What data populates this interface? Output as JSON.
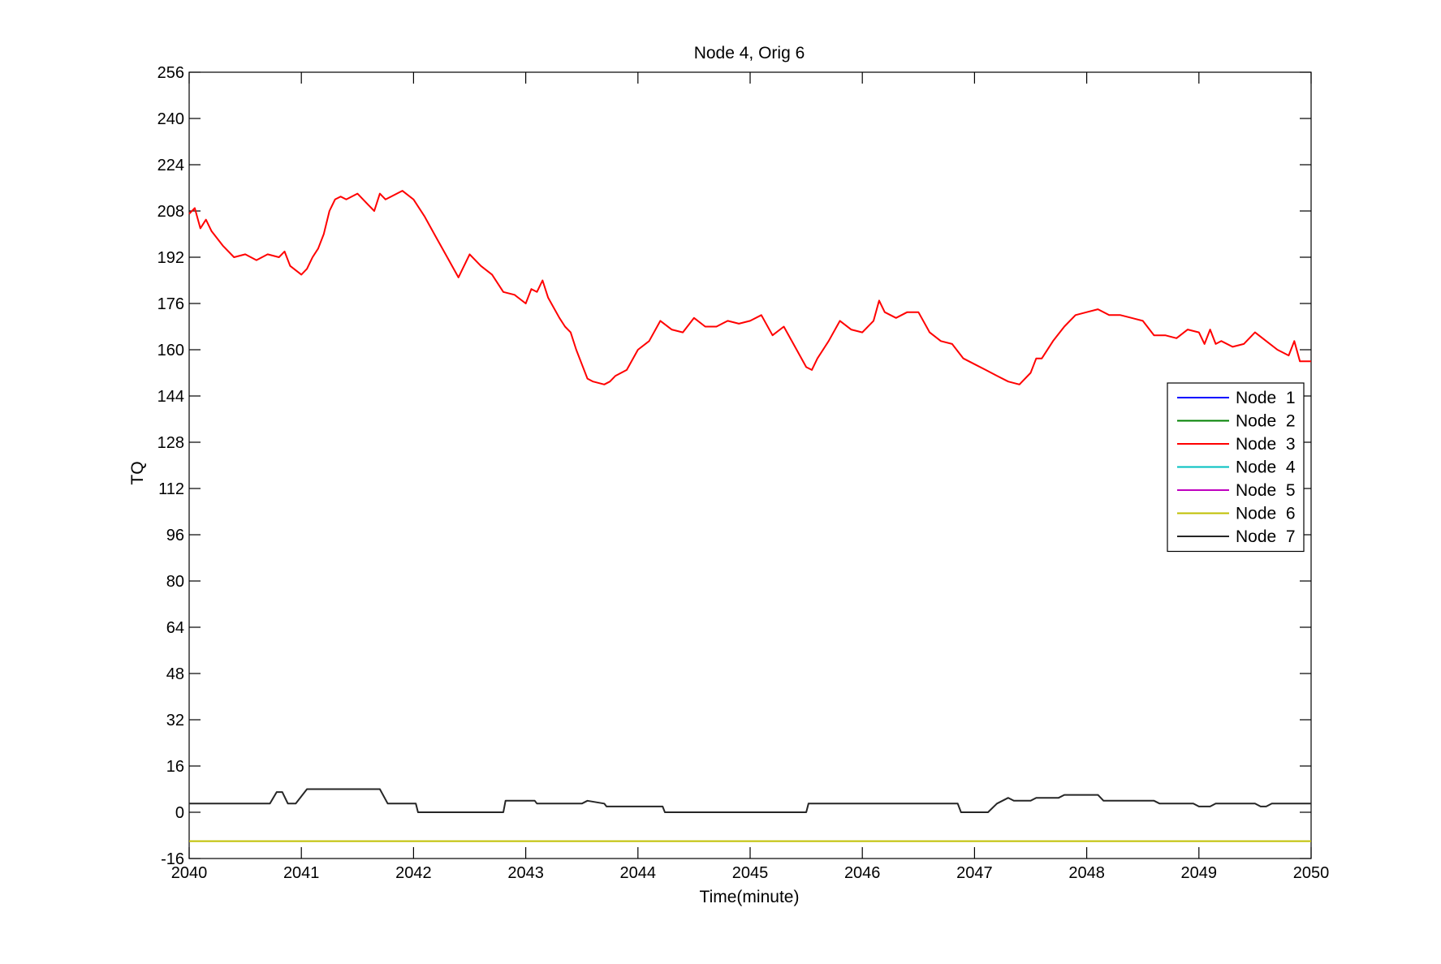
{
  "chart_data": {
    "type": "line",
    "title": "Node 4, Orig 6",
    "xlabel": "Time(minute)",
    "ylabel": "TQ",
    "xlim": [
      2040,
      2050
    ],
    "ylim": [
      -16,
      256
    ],
    "x_ticks": [
      2040,
      2041,
      2042,
      2043,
      2044,
      2045,
      2046,
      2047,
      2048,
      2049,
      2050
    ],
    "y_ticks": [
      -16,
      0,
      16,
      32,
      48,
      64,
      80,
      96,
      112,
      128,
      144,
      160,
      176,
      192,
      208,
      224,
      240,
      256
    ],
    "grid": false,
    "legend_position": "right",
    "series": [
      {
        "name": "Node  1",
        "color": "#0000ff",
        "x": [],
        "y": []
      },
      {
        "name": "Node  2",
        "color": "#008000",
        "x": [],
        "y": []
      },
      {
        "name": "Node  3",
        "color": "#ff0000",
        "x": [
          2040.0,
          2040.05,
          2040.1,
          2040.15,
          2040.2,
          2040.3,
          2040.4,
          2040.5,
          2040.6,
          2040.7,
          2040.8,
          2040.85,
          2040.9,
          2041.0,
          2041.05,
          2041.1,
          2041.15,
          2041.2,
          2041.25,
          2041.3,
          2041.35,
          2041.4,
          2041.5,
          2041.6,
          2041.65,
          2041.7,
          2041.75,
          2041.8,
          2041.9,
          2042.0,
          2042.1,
          2042.2,
          2042.3,
          2042.4,
          2042.5,
          2042.6,
          2042.7,
          2042.8,
          2042.9,
          2043.0,
          2043.05,
          2043.1,
          2043.15,
          2043.2,
          2043.3,
          2043.35,
          2043.4,
          2043.45,
          2043.5,
          2043.55,
          2043.6,
          2043.7,
          2043.75,
          2043.8,
          2043.9,
          2044.0,
          2044.1,
          2044.2,
          2044.3,
          2044.4,
          2044.5,
          2044.6,
          2044.7,
          2044.8,
          2044.9,
          2045.0,
          2045.1,
          2045.2,
          2045.3,
          2045.4,
          2045.5,
          2045.55,
          2045.6,
          2045.7,
          2045.8,
          2045.9,
          2046.0,
          2046.1,
          2046.15,
          2046.2,
          2046.3,
          2046.4,
          2046.5,
          2046.6,
          2046.7,
          2046.8,
          2046.9,
          2047.0,
          2047.1,
          2047.2,
          2047.3,
          2047.4,
          2047.5,
          2047.55,
          2047.6,
          2047.7,
          2047.8,
          2047.9,
          2048.0,
          2048.1,
          2048.2,
          2048.3,
          2048.4,
          2048.5,
          2048.6,
          2048.7,
          2048.8,
          2048.9,
          2049.0,
          2049.05,
          2049.1,
          2049.15,
          2049.2,
          2049.3,
          2049.4,
          2049.5,
          2049.6,
          2049.7,
          2049.8,
          2049.85,
          2049.9,
          2050.0
        ],
        "y": [
          207,
          209,
          202,
          205,
          201,
          196,
          192,
          193,
          191,
          193,
          192,
          194,
          189,
          186,
          188,
          192,
          195,
          200,
          208,
          212,
          213,
          212,
          214,
          210,
          208,
          214,
          212,
          213,
          215,
          212,
          206,
          199,
          192,
          185,
          193,
          189,
          186,
          180,
          179,
          176,
          181,
          180,
          184,
          178,
          171,
          168,
          166,
          160,
          155,
          150,
          149,
          148,
          149,
          151,
          153,
          160,
          163,
          170,
          167,
          166,
          171,
          168,
          168,
          170,
          169,
          170,
          172,
          165,
          168,
          161,
          154,
          153,
          157,
          163,
          170,
          167,
          166,
          170,
          177,
          173,
          171,
          173,
          173,
          166,
          163,
          162,
          157,
          155,
          153,
          151,
          149,
          148,
          152,
          157,
          157,
          163,
          168,
          172,
          173,
          174,
          172,
          172,
          171,
          170,
          165,
          165,
          164,
          167,
          166,
          162,
          167,
          162,
          163,
          161,
          162,
          166,
          163,
          160,
          158,
          163,
          156,
          156
        ]
      },
      {
        "name": "Node  4",
        "color": "#00bfbf",
        "x": [],
        "y": []
      },
      {
        "name": "Node  5",
        "color": "#bf00bf",
        "x": [],
        "y": []
      },
      {
        "name": "Node  6",
        "color": "#bfbf00",
        "x": [
          2040,
          2050
        ],
        "y": [
          -10,
          -10
        ]
      },
      {
        "name": "Node  7",
        "color": "#262626",
        "x": [
          2040.0,
          2040.72,
          2040.78,
          2040.83,
          2040.88,
          2040.95,
          2041.05,
          2041.7,
          2041.77,
          2042.02,
          2042.04,
          2042.8,
          2042.82,
          2043.08,
          2043.1,
          2043.5,
          2043.55,
          2043.7,
          2043.72,
          2044.22,
          2044.24,
          2045.5,
          2045.52,
          2046.85,
          2046.88,
          2047.12,
          2047.2,
          2047.3,
          2047.35,
          2047.5,
          2047.55,
          2047.75,
          2047.8,
          2048.1,
          2048.15,
          2048.6,
          2048.65,
          2048.95,
          2049.0,
          2049.1,
          2049.15,
          2049.5,
          2049.55,
          2049.6,
          2049.65,
          2050.0
        ],
        "y": [
          3,
          3,
          7,
          7,
          3,
          3,
          8,
          8,
          3,
          3,
          0,
          0,
          4,
          4,
          3,
          3,
          4,
          3,
          2,
          2,
          0,
          0,
          3,
          3,
          0,
          0,
          3,
          5,
          4,
          4,
          5,
          5,
          6,
          6,
          4,
          4,
          3,
          3,
          2,
          2,
          3,
          3,
          2,
          2,
          3,
          3
        ]
      }
    ]
  }
}
